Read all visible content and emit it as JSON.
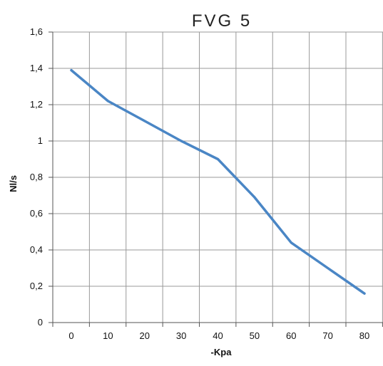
{
  "chart_data": {
    "type": "line",
    "title": "FVG 5",
    "xlabel": "-Kpa",
    "ylabel": "Nl/s",
    "x": [
      0,
      10,
      20,
      30,
      40,
      50,
      60,
      70,
      80
    ],
    "x_ticks": [
      "0",
      "10",
      "20",
      "30",
      "40",
      "50",
      "60",
      "70",
      "80"
    ],
    "y_ticks": [
      "0",
      "0,2",
      "0,4",
      "0,6",
      "0,8",
      "1",
      "1,2",
      "1,4",
      "1,6"
    ],
    "ylim": [
      0,
      1.6
    ],
    "series": [
      {
        "values": [
          1.39,
          1.22,
          1.11,
          1.0,
          0.9,
          0.69,
          0.44,
          0.3,
          0.16
        ],
        "color": "#4a86c5"
      }
    ],
    "grid": true,
    "legend": "none"
  }
}
